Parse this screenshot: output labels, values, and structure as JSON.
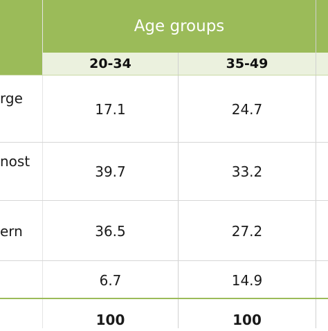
{
  "table": {
    "group_header": "Age groups",
    "columns": [
      "20-34",
      "35-49"
    ],
    "rows": [
      {
        "label": "rge",
        "values": [
          "17.1",
          "24.7"
        ]
      },
      {
        "label": "nost",
        "values": [
          "39.7",
          "33.2"
        ]
      },
      {
        "label": "ern",
        "values": [
          "36.5",
          "27.2"
        ]
      },
      {
        "label": "",
        "values": [
          "6.7",
          "14.9"
        ]
      }
    ],
    "total": {
      "label": "",
      "values": [
        "100",
        "100"
      ]
    }
  },
  "colors": {
    "header_green": "#9bbb59",
    "subheader_tint": "#ebf1de"
  }
}
